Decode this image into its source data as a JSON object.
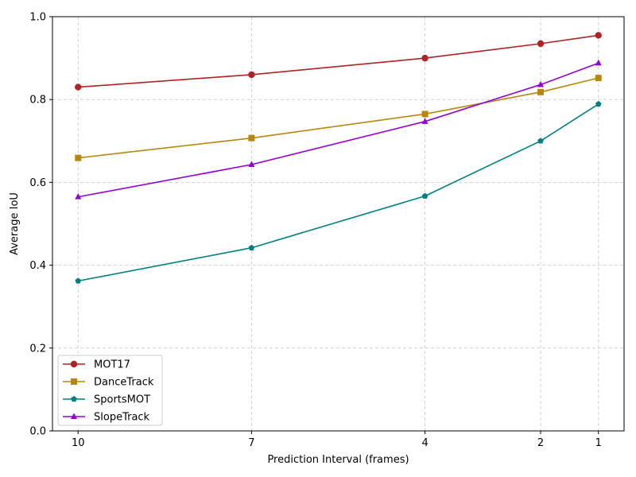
{
  "chart_data": {
    "type": "line",
    "xlabel": "Prediction Interval (frames)",
    "ylabel": "Average IoU",
    "x": [
      10,
      7,
      4,
      2,
      1
    ],
    "x_ticks": [
      10,
      7,
      4,
      2,
      1
    ],
    "x_tick_labels": [
      "10",
      "7",
      "4",
      "2",
      "1"
    ],
    "x_axis_order": "descending",
    "ylim": [
      0.0,
      1.0
    ],
    "y_ticks": [
      0.0,
      0.2,
      0.4,
      0.6,
      0.8,
      1.0
    ],
    "y_tick_labels": [
      "0.0",
      "0.2",
      "0.4",
      "0.6",
      "0.8",
      "1.0"
    ],
    "grid": true,
    "legend_position": "bottom-left",
    "series": [
      {
        "name": "MOT17",
        "color": "#b22222",
        "marker": "circle",
        "values": [
          0.83,
          0.86,
          0.9,
          0.935,
          0.955
        ]
      },
      {
        "name": "DanceTrack",
        "color": "#b8860b",
        "marker": "square",
        "values": [
          0.659,
          0.707,
          0.765,
          0.818,
          0.852
        ]
      },
      {
        "name": "SportsMOT",
        "color": "#008080",
        "marker": "pentagon",
        "values": [
          0.362,
          0.442,
          0.567,
          0.7,
          0.789
        ]
      },
      {
        "name": "SlopeTrack",
        "color": "#9400d3",
        "marker": "triangle",
        "values": [
          0.565,
          0.643,
          0.747,
          0.836,
          0.888
        ]
      }
    ]
  }
}
